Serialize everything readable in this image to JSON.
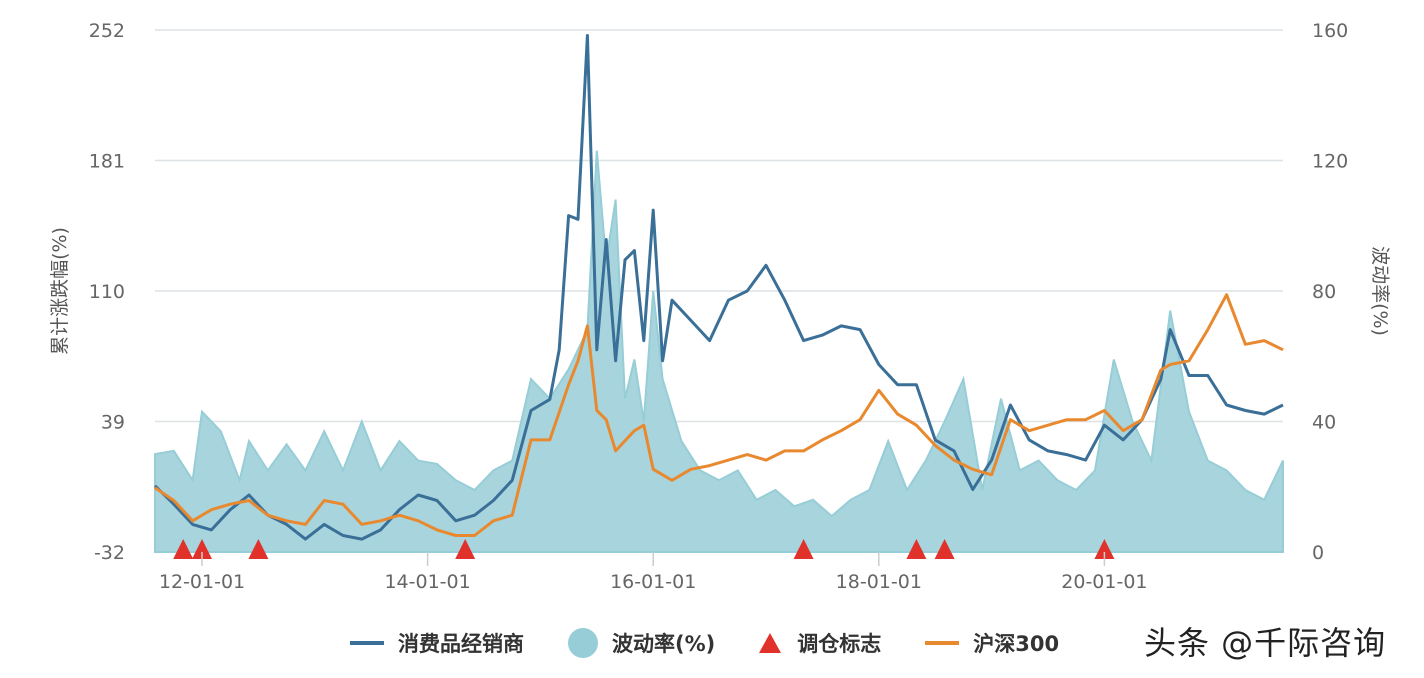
{
  "chart_data": {
    "type": "line",
    "left_axis": {
      "label": "累计涨跌幅(%)",
      "ticks": [
        -32,
        39,
        110,
        181,
        252
      ],
      "range": [
        -32,
        252
      ]
    },
    "right_axis": {
      "label": "波动率(%)",
      "ticks": [
        0,
        40,
        80,
        120,
        160
      ],
      "range": [
        0,
        160
      ]
    },
    "x_axis": {
      "ticks": [
        "12-01-01",
        "14-01-01",
        "16-01-01",
        "18-01-01",
        "20-01-01"
      ],
      "range": [
        "2011-08",
        "2021-08"
      ]
    },
    "grid": "horizontal",
    "legend_position": "bottom",
    "colors": {
      "consumer": "#3a6f98",
      "volatility": "#a8d5dd",
      "marker": "#e0322a",
      "csi300": "#e8892f"
    },
    "series": [
      {
        "name": "消费品经销商",
        "axis": "left",
        "kind": "line",
        "x": [
          "2011-08",
          "2011-10",
          "2011-12",
          "2012-02",
          "2012-04",
          "2012-06",
          "2012-08",
          "2012-10",
          "2012-12",
          "2013-02",
          "2013-04",
          "2013-06",
          "2013-08",
          "2013-10",
          "2013-12",
          "2014-02",
          "2014-04",
          "2014-06",
          "2014-08",
          "2014-10",
          "2014-12",
          "2015-02",
          "2015-03",
          "2015-04",
          "2015-05",
          "2015-06",
          "2015-07",
          "2015-08",
          "2015-09",
          "2015-10",
          "2015-11",
          "2015-12",
          "2016-01",
          "2016-02",
          "2016-03",
          "2016-05",
          "2016-07",
          "2016-09",
          "2016-11",
          "2017-01",
          "2017-03",
          "2017-05",
          "2017-07",
          "2017-09",
          "2017-11",
          "2018-01",
          "2018-03",
          "2018-05",
          "2018-07",
          "2018-09",
          "2018-11",
          "2019-01",
          "2019-03",
          "2019-05",
          "2019-07",
          "2019-09",
          "2019-11",
          "2020-01",
          "2020-03",
          "2020-05",
          "2020-07",
          "2020-08",
          "2020-10",
          "2020-12",
          "2021-02",
          "2021-04",
          "2021-06",
          "2021-08"
        ],
        "y": [
          4,
          -6,
          -17,
          -20,
          -9,
          -1,
          -12,
          -17,
          -25,
          -17,
          -23,
          -25,
          -20,
          -9,
          -1,
          -4,
          -15,
          -12,
          -4,
          7,
          45,
          51,
          78,
          151,
          149,
          249,
          78,
          138,
          72,
          127,
          132,
          83,
          154,
          72,
          105,
          94,
          83,
          105,
          110,
          124,
          105,
          83,
          86,
          91,
          89,
          70,
          59,
          59,
          29,
          23,
          2,
          18,
          48,
          29,
          23,
          21,
          18,
          37,
          29,
          40,
          62,
          89,
          64,
          64,
          48,
          45,
          43,
          48
        ]
      },
      {
        "name": "波动率(%)",
        "axis": "right",
        "kind": "area",
        "x": [
          "2011-08",
          "2011-10",
          "2011-12",
          "2012-01",
          "2012-03",
          "2012-05",
          "2012-06",
          "2012-08",
          "2012-10",
          "2012-12",
          "2013-02",
          "2013-04",
          "2013-06",
          "2013-08",
          "2013-10",
          "2013-12",
          "2014-02",
          "2014-04",
          "2014-06",
          "2014-08",
          "2014-10",
          "2014-12",
          "2015-02",
          "2015-04",
          "2015-06",
          "2015-07",
          "2015-08",
          "2015-09",
          "2015-10",
          "2015-11",
          "2015-12",
          "2016-01",
          "2016-02",
          "2016-04",
          "2016-06",
          "2016-08",
          "2016-10",
          "2016-12",
          "2017-02",
          "2017-04",
          "2017-06",
          "2017-08",
          "2017-10",
          "2017-12",
          "2018-02",
          "2018-04",
          "2018-06",
          "2018-08",
          "2018-10",
          "2018-12",
          "2019-02",
          "2019-04",
          "2019-06",
          "2019-08",
          "2019-10",
          "2019-12",
          "2020-02",
          "2020-04",
          "2020-06",
          "2020-08",
          "2020-10",
          "2020-12",
          "2021-02",
          "2021-04",
          "2021-06",
          "2021-08"
        ],
        "y": [
          30,
          31,
          22,
          43,
          37,
          22,
          34,
          25,
          33,
          25,
          37,
          25,
          40,
          25,
          34,
          28,
          27,
          22,
          19,
          25,
          28,
          53,
          47,
          56,
          68,
          123,
          89,
          108,
          47,
          59,
          40,
          80,
          53,
          34,
          25,
          22,
          25,
          16,
          19,
          14,
          16,
          11,
          16,
          19,
          34,
          19,
          28,
          40,
          53,
          19,
          47,
          25,
          28,
          22,
          19,
          25,
          59,
          40,
          28,
          74,
          43,
          28,
          25,
          19,
          16,
          28
        ]
      },
      {
        "name": "调仓标志",
        "axis": "left",
        "kind": "marker",
        "x": [
          "2011-11",
          "2012-01",
          "2012-07",
          "2014-05",
          "2017-05",
          "2018-05",
          "2018-08",
          "2020-01"
        ]
      },
      {
        "name": "沪深300",
        "axis": "left",
        "kind": "line",
        "x": [
          "2011-08",
          "2011-10",
          "2011-12",
          "2012-02",
          "2012-04",
          "2012-06",
          "2012-08",
          "2012-10",
          "2012-12",
          "2013-02",
          "2013-04",
          "2013-06",
          "2013-08",
          "2013-10",
          "2013-12",
          "2014-02",
          "2014-04",
          "2014-06",
          "2014-08",
          "2014-10",
          "2014-12",
          "2015-02",
          "2015-04",
          "2015-05",
          "2015-06",
          "2015-07",
          "2015-08",
          "2015-09",
          "2015-11",
          "2015-12",
          "2016-01",
          "2016-03",
          "2016-05",
          "2016-07",
          "2016-09",
          "2016-11",
          "2017-01",
          "2017-03",
          "2017-05",
          "2017-07",
          "2017-09",
          "2017-11",
          "2018-01",
          "2018-03",
          "2018-05",
          "2018-07",
          "2018-09",
          "2018-11",
          "2019-01",
          "2019-03",
          "2019-05",
          "2019-07",
          "2019-09",
          "2019-11",
          "2020-01",
          "2020-03",
          "2020-05",
          "2020-07",
          "2020-08",
          "2020-10",
          "2020-12",
          "2021-02",
          "2021-04",
          "2021-06",
          "2021-08"
        ],
        "y": [
          3,
          -4,
          -15,
          -9,
          -6,
          -4,
          -12,
          -15,
          -17,
          -4,
          -6,
          -17,
          -15,
          -12,
          -15,
          -20,
          -23,
          -23,
          -15,
          -12,
          29,
          29,
          59,
          72,
          91,
          45,
          40,
          23,
          34,
          37,
          13,
          7,
          13,
          15,
          18,
          21,
          18,
          23,
          23,
          29,
          34,
          40,
          56,
          43,
          37,
          26,
          18,
          13,
          10,
          40,
          34,
          37,
          40,
          40,
          45,
          34,
          40,
          67,
          70,
          72,
          89,
          108,
          81,
          83,
          78
        ]
      }
    ]
  },
  "watermark": "头条 @千际咨询"
}
